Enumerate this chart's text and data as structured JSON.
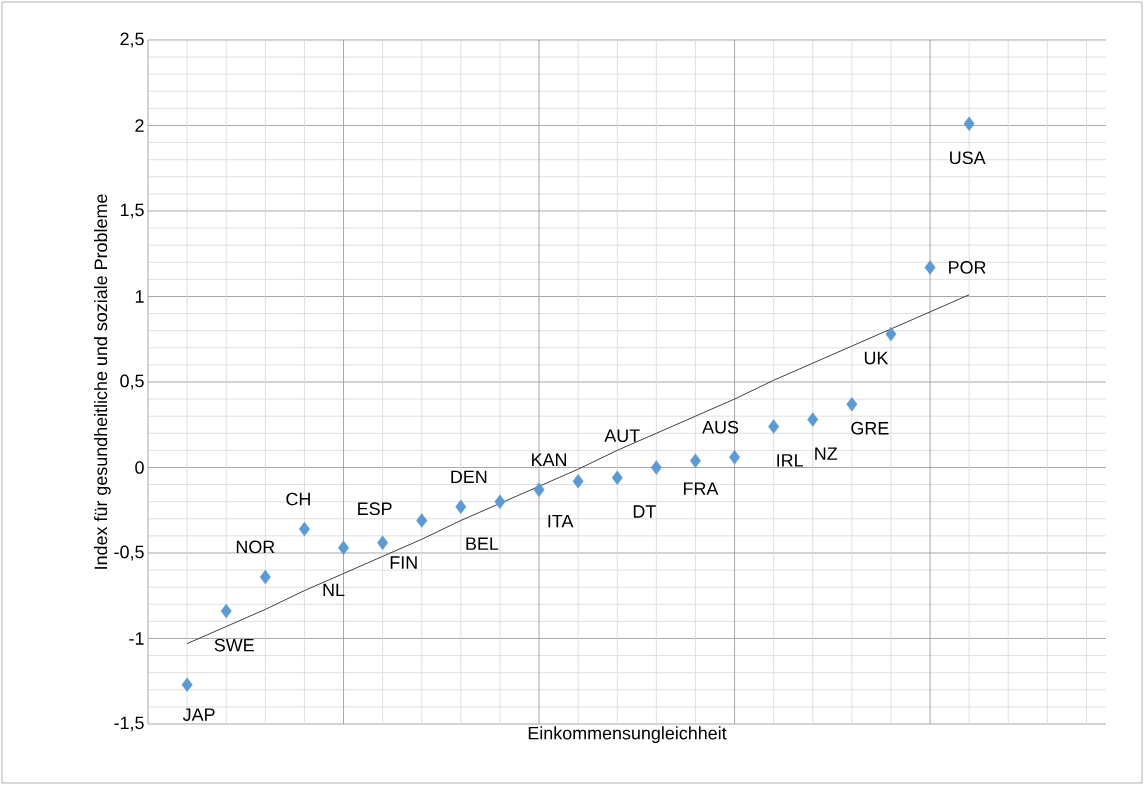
{
  "chart_data": {
    "type": "scatter",
    "xlabel": "Einkommensungleichheit",
    "ylabel": "Index für gesundheitliche und soziale Probleme",
    "categories": [
      null,
      null,
      null,
      null,
      null,
      null,
      null,
      null,
      null,
      null,
      null,
      null,
      null,
      null,
      null,
      null,
      null,
      null,
      null,
      null,
      null
    ],
    "ylim": [
      -1.5,
      2.5
    ],
    "yticks": [
      {
        "value": -1.5,
        "label": "-1,5"
      },
      {
        "value": -1,
        "label": "-1"
      },
      {
        "value": -0.5,
        "label": "-0,5"
      },
      {
        "value": 0,
        "label": "0"
      },
      {
        "value": 0.5,
        "label": "0,5"
      },
      {
        "value": 1,
        "label": "1"
      },
      {
        "value": 1.5,
        "label": "1,5"
      },
      {
        "value": 2,
        "label": "2"
      },
      {
        "value": 2.5,
        "label": "2,5"
      }
    ],
    "grid": true,
    "series": [
      {
        "color": "#5b9bd5",
        "marker": "diamond",
        "values": [
          -1.27,
          -0.84,
          -0.64,
          -0.36,
          -0.47,
          -0.44,
          -0.31,
          -0.23,
          -0.2,
          -0.13,
          -0.08,
          -0.06,
          0.0,
          0.04,
          0.06,
          0.24,
          0.28,
          0.37,
          0.78,
          1.17,
          2.01
        ]
      },
      {
        "type": "line",
        "color": "#404040",
        "line_style": "solid",
        "values": [
          -1.03,
          -0.93,
          -0.83,
          -0.72,
          -0.62,
          -0.52,
          -0.42,
          -0.31,
          -0.21,
          -0.11,
          -0.01,
          0.1,
          0.2,
          0.3,
          0.4,
          0.51,
          0.61,
          0.71,
          0.81,
          0.91,
          1.01
        ]
      }
    ],
    "annotations": [
      "JAP",
      "SWE",
      "NOR",
      "CH",
      "NL",
      "ESP",
      "FIN",
      "DEN",
      "BEL",
      "KAN",
      "ITA",
      "AUT",
      "DT",
      "FRA",
      "AUS",
      "IRL",
      "NZ",
      "GRE",
      "UK",
      "POR",
      "USA"
    ]
  }
}
